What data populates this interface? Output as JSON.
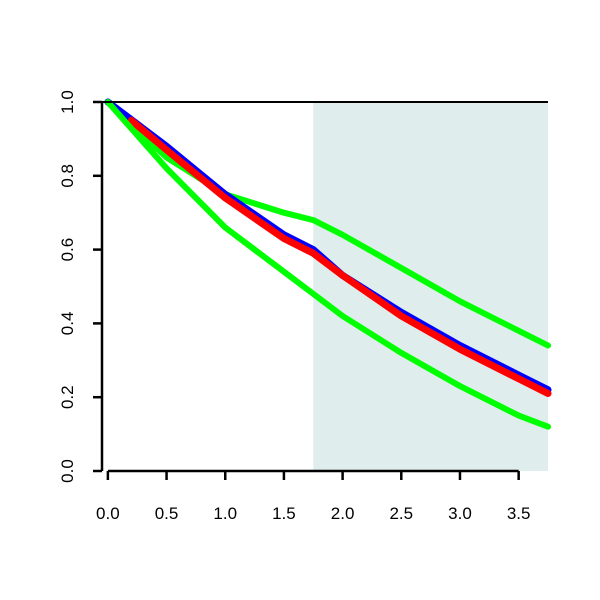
{
  "chart_data": {
    "type": "line",
    "title": "",
    "xlabel": "",
    "ylabel": "",
    "xlim": [
      -0.05,
      3.75
    ],
    "ylim": [
      0.0,
      1.0
    ],
    "x_ticks": [
      0.0,
      0.5,
      1.0,
      1.5,
      2.0,
      2.5,
      3.0,
      3.5
    ],
    "x_tick_labels": [
      "0.0",
      "0.5",
      "1.0",
      "1.5",
      "2.0",
      "2.5",
      "3.0",
      "3.5"
    ],
    "y_ticks": [
      0.0,
      0.2,
      0.4,
      0.6,
      0.8,
      1.0
    ],
    "y_tick_labels": [
      "0.0",
      "0.2",
      "0.4",
      "0.6",
      "0.8",
      "1.0"
    ],
    "grid": false,
    "shaded_region": {
      "x_start": 1.75,
      "x_end": 3.75,
      "color": "#e0eded"
    },
    "series": [
      {
        "color": "#00ff00",
        "x": [
          0.0,
          0.5,
          1.0,
          1.5,
          1.75,
          2.0,
          2.5,
          3.0,
          3.5,
          3.75
        ],
        "y": [
          1.0,
          0.85,
          0.75,
          0.7,
          0.68,
          0.64,
          0.55,
          0.46,
          0.38,
          0.34
        ]
      },
      {
        "color": "#0000ff",
        "x": [
          0.0,
          0.5,
          1.0,
          1.5,
          1.75,
          2.0,
          2.5,
          3.0,
          3.5,
          3.75
        ],
        "y": [
          1.0,
          0.88,
          0.75,
          0.64,
          0.6,
          0.53,
          0.43,
          0.34,
          0.26,
          0.22
        ]
      },
      {
        "color": "#ff0000",
        "x": [
          0.2,
          0.5,
          1.0,
          1.5,
          1.75,
          2.0,
          2.5,
          3.0,
          3.5,
          3.75
        ],
        "y": [
          0.95,
          0.87,
          0.74,
          0.63,
          0.59,
          0.53,
          0.42,
          0.33,
          0.25,
          0.21
        ]
      },
      {
        "color": "#00ff00",
        "x": [
          0.0,
          0.5,
          1.0,
          1.5,
          1.75,
          2.0,
          2.5,
          3.0,
          3.5,
          3.75
        ],
        "y": [
          1.0,
          0.82,
          0.66,
          0.54,
          0.48,
          0.42,
          0.32,
          0.23,
          0.15,
          0.12
        ]
      }
    ]
  }
}
